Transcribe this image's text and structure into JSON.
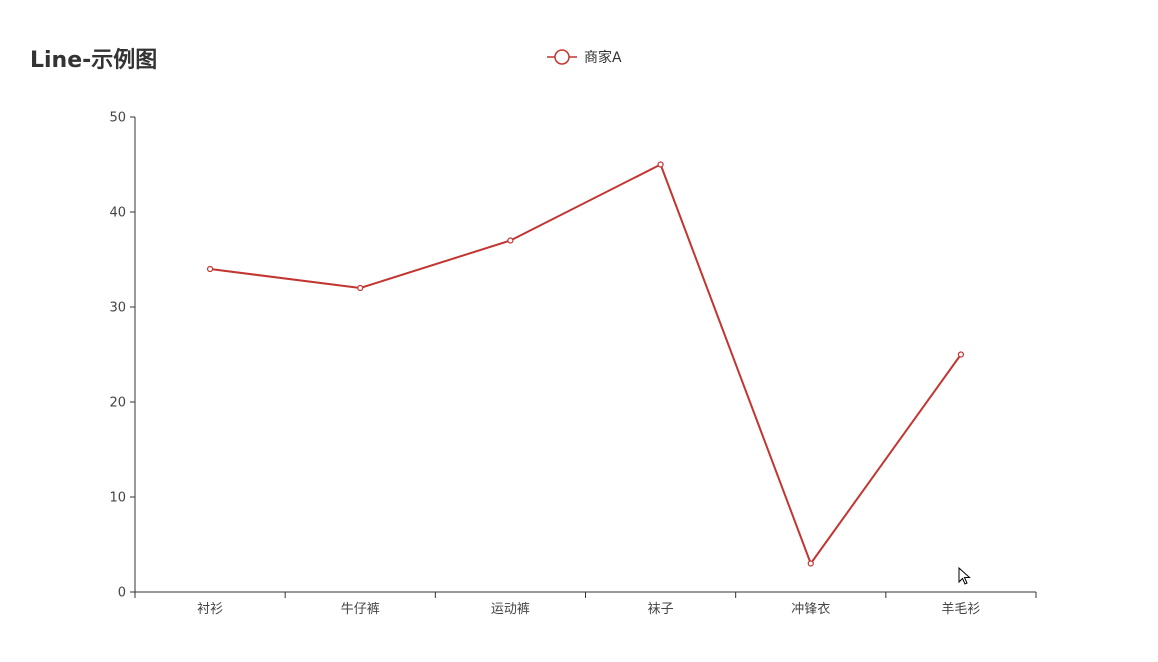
{
  "chart_data": {
    "type": "line",
    "title": "Line-示例图",
    "categories": [
      "衬衫",
      "牛仔裤",
      "运动裤",
      "袜子",
      "冲锋衣",
      "羊毛衫"
    ],
    "series": [
      {
        "name": "商家A",
        "values": [
          34,
          32,
          37,
          45,
          3,
          25
        ],
        "color": "#c23531"
      }
    ],
    "ylim": [
      0,
      50
    ],
    "yticks": [
      0,
      10,
      20,
      30,
      40,
      50
    ],
    "grid": false,
    "legend_position": "top-center"
  },
  "icons": {
    "legend_marker": "line-with-circle-icon",
    "cursor": "mouse-pointer-icon"
  }
}
